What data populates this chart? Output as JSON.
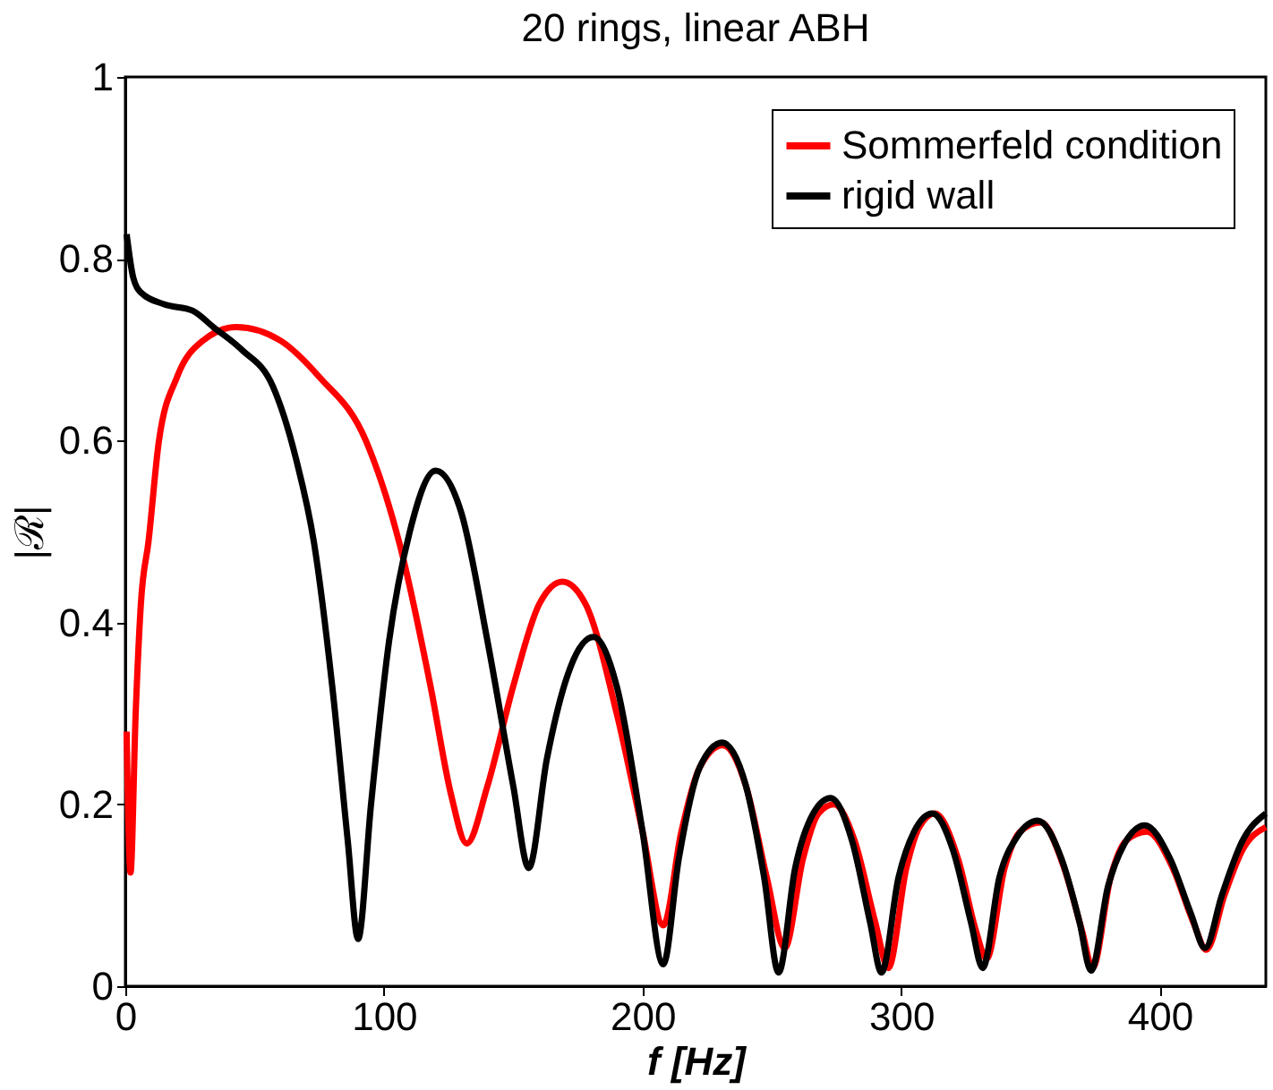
{
  "chart_data": {
    "type": "line",
    "title": "20 rings, linear ABH",
    "xlabel": "f [Hz]",
    "ylabel": "|ℛ|",
    "xlim": [
      0,
      441
    ],
    "ylim": [
      0,
      1
    ],
    "xticks": [
      0,
      100,
      200,
      300,
      400
    ],
    "yticks": [
      0,
      0.2,
      0.4,
      0.6,
      0.8,
      1
    ],
    "grid": false,
    "legend": "top right",
    "line_style": "solid",
    "marker": "none",
    "series": [
      {
        "name": "Sommerfeld condition",
        "color": "#ff0000",
        "x": [
          0.5,
          2,
          4,
          6,
          9,
          13,
          20,
          30,
          43,
          60,
          75,
          93,
          106,
          118,
          126,
          132,
          140,
          150,
          160,
          169,
          178,
          190,
          200,
          208,
          215,
          222,
          231,
          240,
          248,
          255,
          262,
          268,
          274,
          282,
          290,
          295,
          302,
          307,
          313,
          322,
          329,
          333,
          340,
          346,
          354,
          363,
          370,
          374,
          381,
          387,
          395,
          405,
          413,
          418,
          425,
          432,
          441
        ],
        "values": [
          0.28,
          0.125,
          0.3,
          0.42,
          0.49,
          0.6,
          0.67,
          0.71,
          0.725,
          0.71,
          0.67,
          0.6,
          0.487,
          0.33,
          0.21,
          0.157,
          0.22,
          0.33,
          0.42,
          0.445,
          0.42,
          0.3,
          0.17,
          0.067,
          0.17,
          0.24,
          0.265,
          0.22,
          0.12,
          0.042,
          0.14,
          0.19,
          0.2,
          0.16,
          0.07,
          0.02,
          0.13,
          0.175,
          0.19,
          0.14,
          0.06,
          0.03,
          0.13,
          0.17,
          0.18,
          0.13,
          0.06,
          0.02,
          0.12,
          0.16,
          0.17,
          0.13,
          0.07,
          0.04,
          0.1,
          0.15,
          0.175
        ]
      },
      {
        "name": "rigid wall",
        "color": "#000000",
        "x": [
          0.5,
          3,
          6,
          15,
          26,
          34,
          45,
          57,
          66,
          73,
          80,
          86,
          90,
          95,
          102,
          110,
          120,
          130,
          140,
          150,
          156,
          163,
          172,
          181,
          190,
          200,
          208,
          214,
          222,
          230.8,
          240,
          247,
          252.6,
          259,
          266,
          272.7,
          281,
          288,
          292.4,
          299,
          305,
          312,
          320,
          327,
          331.5,
          338,
          345,
          352.8,
          362,
          369,
          373.4,
          380,
          386,
          394.2,
          404,
          412,
          417.5,
          424,
          432,
          441
        ],
        "values": [
          0.827,
          0.78,
          0.763,
          0.75,
          0.743,
          0.725,
          0.7,
          0.66,
          0.58,
          0.487,
          0.33,
          0.16,
          0.052,
          0.2,
          0.38,
          0.5,
          0.567,
          0.52,
          0.38,
          0.22,
          0.13,
          0.25,
          0.35,
          0.384,
          0.33,
          0.17,
          0.024,
          0.14,
          0.24,
          0.268,
          0.22,
          0.12,
          0.015,
          0.13,
          0.19,
          0.207,
          0.16,
          0.07,
          0.015,
          0.12,
          0.17,
          0.19,
          0.15,
          0.07,
          0.02,
          0.12,
          0.165,
          0.182,
          0.14,
          0.07,
          0.017,
          0.11,
          0.155,
          0.177,
          0.14,
          0.08,
          0.042,
          0.1,
          0.16,
          0.19
        ]
      }
    ]
  }
}
